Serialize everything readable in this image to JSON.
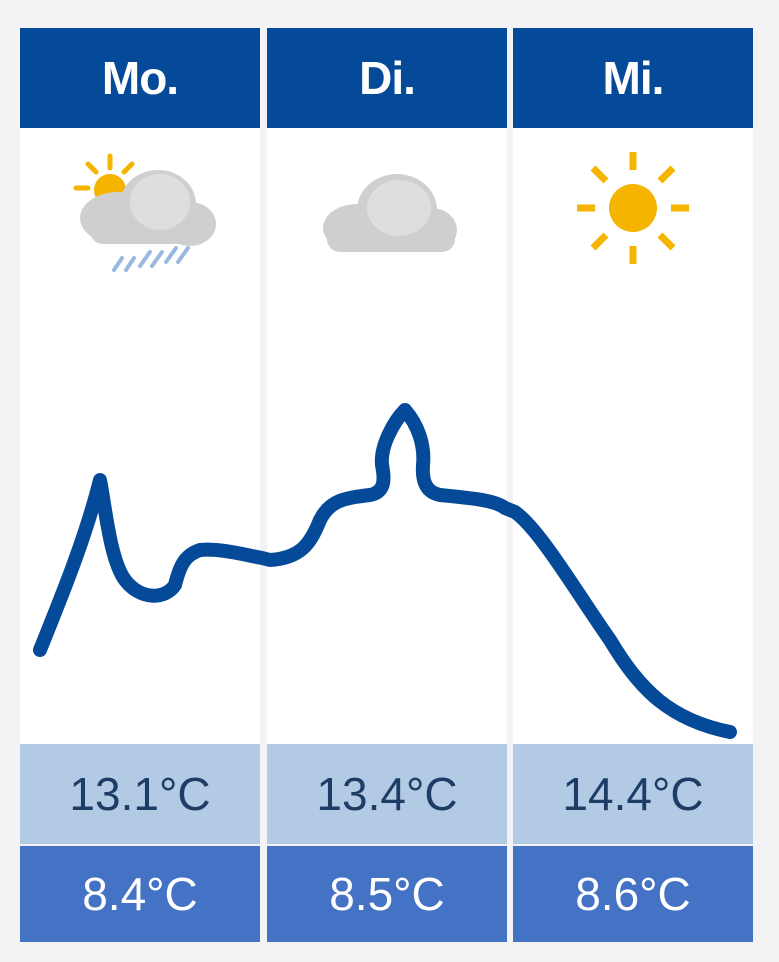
{
  "days": [
    {
      "label": "Mo.",
      "icon": "partly-sunny-rain-icon",
      "max": "13.1°C",
      "min": "8.4°C"
    },
    {
      "label": "Di.",
      "icon": "cloud-icon",
      "max": "13.4°C",
      "min": "8.5°C"
    },
    {
      "label": "Mi.",
      "icon": "sun-icon",
      "max": "14.4°C",
      "min": "8.6°C"
    }
  ],
  "colors": {
    "header": "#054a99",
    "max_row": "#b3cae5",
    "min_row": "#4472c4",
    "curve": "#054a99",
    "sun": "#f5b400",
    "cloud": "#cfcfcf"
  }
}
